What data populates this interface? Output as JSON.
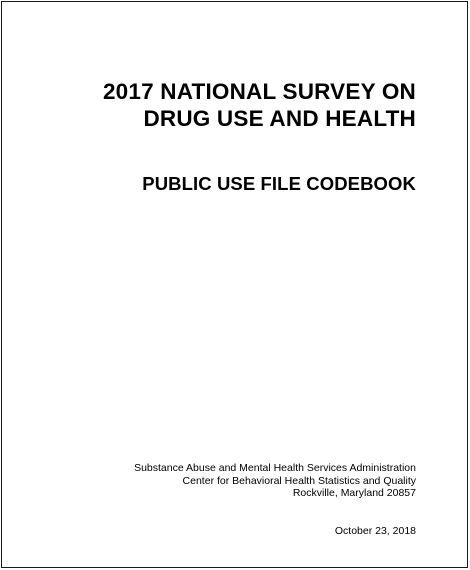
{
  "document": {
    "title_lines": [
      "2017 NATIONAL SURVEY ON",
      "DRUG USE AND HEALTH"
    ],
    "subtitle": "PUBLIC USE FILE CODEBOOK",
    "agency_lines": [
      "Substance Abuse and Mental Health Services Administration",
      "Center for Behavioral Health Statistics and Quality",
      "Rockville, Maryland 20857"
    ],
    "date": "October 23, 2018"
  },
  "colors": {
    "text": "#000000",
    "background": "#ffffff",
    "border": "#1a1a1a"
  }
}
